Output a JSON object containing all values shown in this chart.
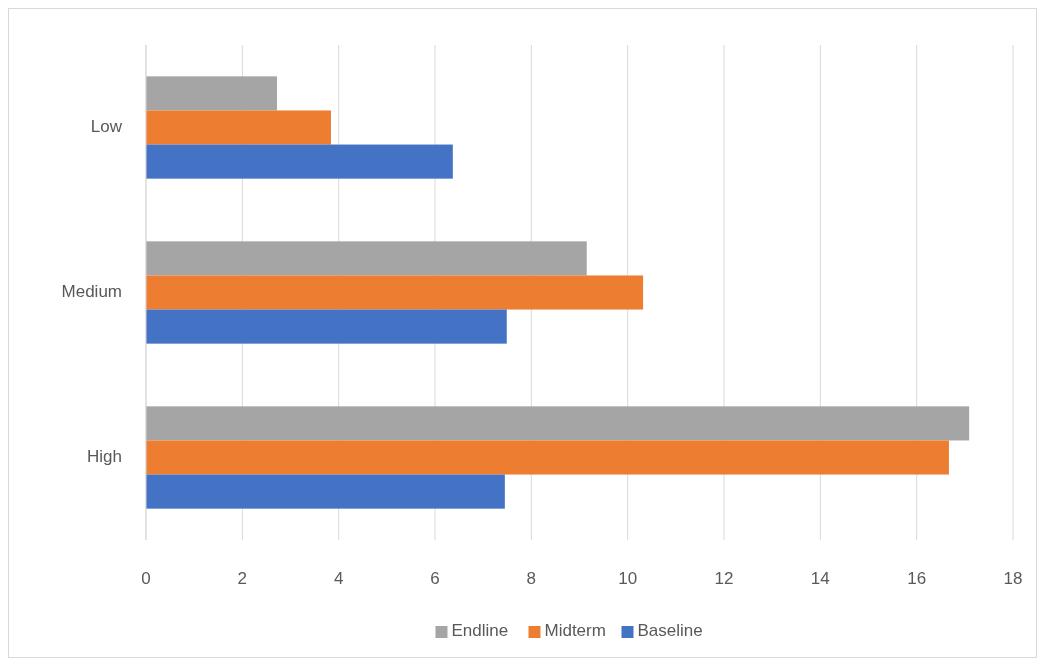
{
  "chart_data": {
    "type": "bar",
    "orientation": "horizontal",
    "categories": [
      "Low",
      "Medium",
      "High"
    ],
    "series": [
      {
        "name": "Endline",
        "color": "#a5a5a5",
        "values": [
          2.72,
          9.15,
          17.09
        ]
      },
      {
        "name": "Midterm",
        "color": "#ed7d31",
        "values": [
          3.84,
          10.32,
          16.67
        ]
      },
      {
        "name": "Baseline",
        "color": "#4472c4",
        "values": [
          6.37,
          7.49,
          7.45
        ]
      }
    ],
    "xlim": [
      0,
      18
    ],
    "xticks": [
      0,
      2,
      4,
      6,
      8,
      10,
      12,
      14,
      16,
      18
    ],
    "grid": "x",
    "legend": "bottom"
  }
}
